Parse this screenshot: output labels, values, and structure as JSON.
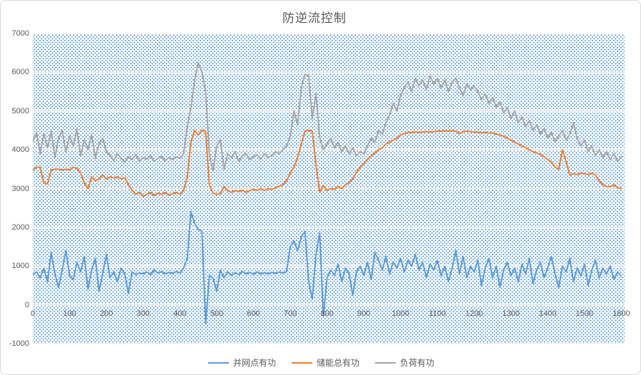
{
  "title": "防逆流控制",
  "colors": {
    "series_blue": "#5B9BD5",
    "series_orange": "#ED7D31",
    "series_gray": "#A5A5A5",
    "axis_text": "#595959",
    "gridline": "#D9D9D9",
    "gridline_halo": "#FFFFFF",
    "plot_pattern_dot": "#4F94D4",
    "background": "#FFFFFF"
  },
  "chart_data": {
    "type": "line",
    "title": "防逆流控制",
    "grid": "horizontal",
    "legend_position": "bottom",
    "x_axis": {
      "min": 0,
      "max": 1609,
      "step_between_points": 10,
      "ticks": [
        0,
        100,
        200,
        300,
        400,
        500,
        600,
        700,
        800,
        900,
        1000,
        1100,
        1200,
        1300,
        1400,
        1500,
        1600
      ]
    },
    "y_axis": {
      "min": -1000,
      "max": 7000,
      "ticks": [
        7000,
        6000,
        5000,
        4000,
        3000,
        2000,
        1000,
        0,
        -1000
      ]
    },
    "series": [
      {
        "name": "并网点有功",
        "color": "#5B9BD5",
        "values": [
          780,
          850,
          700,
          950,
          600,
          1350,
          800,
          450,
          900,
          1400,
          750,
          650,
          1100,
          850,
          1250,
          400,
          900,
          1200,
          350,
          800,
          1300,
          700,
          850,
          600,
          950,
          800,
          300,
          850,
          780,
          820,
          800,
          850,
          780,
          900,
          820,
          860,
          800,
          840,
          810,
          860,
          820,
          950,
          1200,
          2400,
          2100,
          1950,
          1900,
          -500,
          750,
          700,
          350,
          900,
          700,
          850,
          760,
          830,
          780,
          860,
          800,
          840,
          790,
          850,
          800,
          830,
          800,
          840,
          810,
          850,
          820,
          860,
          1500,
          1650,
          1400,
          1750,
          1900,
          600,
          150,
          1300,
          1850,
          -300,
          700,
          900,
          760,
          1050,
          600,
          950,
          800,
          250,
          850,
          1000,
          760,
          1100,
          650,
          1350,
          1150,
          900,
          1250,
          800,
          1100,
          950,
          1200,
          850,
          1150,
          1000,
          1300,
          900,
          1100,
          700,
          1050,
          900,
          1150,
          750,
          1000,
          600,
          950,
          1400,
          800,
          1250,
          700,
          1000,
          850,
          1150,
          500,
          950,
          1200,
          700,
          1000,
          450,
          900,
          1100,
          750,
          950,
          600,
          1050,
          800,
          1200,
          550,
          900,
          1100,
          700,
          950,
          1250,
          800,
          450,
          1000,
          850,
          1200,
          600,
          950,
          750,
          1050,
          500,
          900,
          1150,
          700,
          950,
          800,
          1000,
          650,
          850,
          740
        ]
      },
      {
        "name": "储能总有功",
        "color": "#ED7D31",
        "values": [
          3480,
          3550,
          3550,
          3150,
          3120,
          3480,
          3500,
          3500,
          3480,
          3500,
          3480,
          3550,
          3520,
          3400,
          3150,
          3000,
          3300,
          3200,
          3250,
          3350,
          3250,
          3300,
          3270,
          3300,
          3250,
          3280,
          3100,
          2950,
          2850,
          2900,
          2800,
          2850,
          2900,
          2820,
          2880,
          2850,
          2900,
          2830,
          2870,
          2900,
          2850,
          2950,
          3300,
          4200,
          4500,
          4380,
          4500,
          4480,
          3100,
          2880,
          2850,
          2870,
          3050,
          2950,
          2900,
          2950,
          2920,
          2960,
          2900,
          2950,
          2980,
          2950,
          3000,
          2950,
          3000,
          2980,
          3020,
          3060,
          3100,
          3200,
          3400,
          3550,
          3800,
          4150,
          4480,
          4500,
          4480,
          3600,
          2900,
          3080,
          2950,
          3000,
          2980,
          3050,
          3000,
          3100,
          3150,
          3250,
          3420,
          3550,
          3650,
          3750,
          3840,
          3920,
          4000,
          4050,
          4150,
          4200,
          4250,
          4300,
          4380,
          4420,
          4450,
          4450,
          4460,
          4450,
          4460,
          4470,
          4460,
          4470,
          4480,
          4480,
          4490,
          4480,
          4490,
          4480,
          4420,
          4470,
          4480,
          4470,
          4460,
          4450,
          4440,
          4450,
          4430,
          4440,
          4400,
          4380,
          4350,
          4300,
          4250,
          4200,
          4150,
          4100,
          4050,
          4000,
          3950,
          3920,
          3880,
          3820,
          3750,
          3680,
          3550,
          3500,
          4000,
          3700,
          3350,
          3380,
          3360,
          3400,
          3380,
          3360,
          3400,
          3350,
          3200,
          3100,
          3050,
          3050,
          3100,
          3020,
          3000
        ]
      },
      {
        "name": "负荷有功",
        "color": "#A5A5A5",
        "values": [
          4210,
          4450,
          3900,
          4420,
          4050,
          4480,
          3800,
          4300,
          4500,
          3950,
          4350,
          4100,
          4520,
          3850,
          4250,
          4000,
          4400,
          3780,
          4150,
          4300,
          3950,
          3850,
          3720,
          3900,
          3780,
          3680,
          3820,
          3750,
          3880,
          3700,
          3800,
          3760,
          3850,
          3700,
          3780,
          3830,
          3720,
          3800,
          3750,
          3820,
          3780,
          3900,
          4600,
          5100,
          5800,
          6250,
          6000,
          5500,
          3900,
          3450,
          4100,
          4250,
          3500,
          3900,
          3800,
          3950,
          3700,
          3850,
          3900,
          3750,
          3820,
          3880,
          3760,
          3900,
          3800,
          3850,
          3950,
          3900,
          4000,
          4100,
          4350,
          5000,
          4650,
          5600,
          5950,
          5900,
          4800,
          5450,
          4300,
          4000,
          4150,
          4300,
          4050,
          4200,
          3950,
          4100,
          3900,
          4050,
          3850,
          3950,
          3900,
          4100,
          4300,
          4200,
          4500,
          4400,
          4700,
          4900,
          5200,
          5000,
          5400,
          5600,
          5750,
          5500,
          5850,
          5650,
          5800,
          5550,
          5900,
          5700,
          5850,
          5600,
          5800,
          5500,
          5750,
          5850,
          5600,
          5400,
          5700,
          5550,
          5650,
          5500,
          5300,
          5450,
          5200,
          5350,
          5100,
          5250,
          4950,
          5100,
          4800,
          5000,
          4700,
          4850,
          4600,
          4750,
          4500,
          4650,
          4400,
          4550,
          4300,
          4450,
          4200,
          4350,
          4500,
          4250,
          4400,
          4700,
          4300,
          4100,
          4250,
          3950,
          4100,
          3850,
          4000,
          3800,
          3950,
          3750,
          3900,
          3700,
          3820
        ]
      }
    ]
  }
}
